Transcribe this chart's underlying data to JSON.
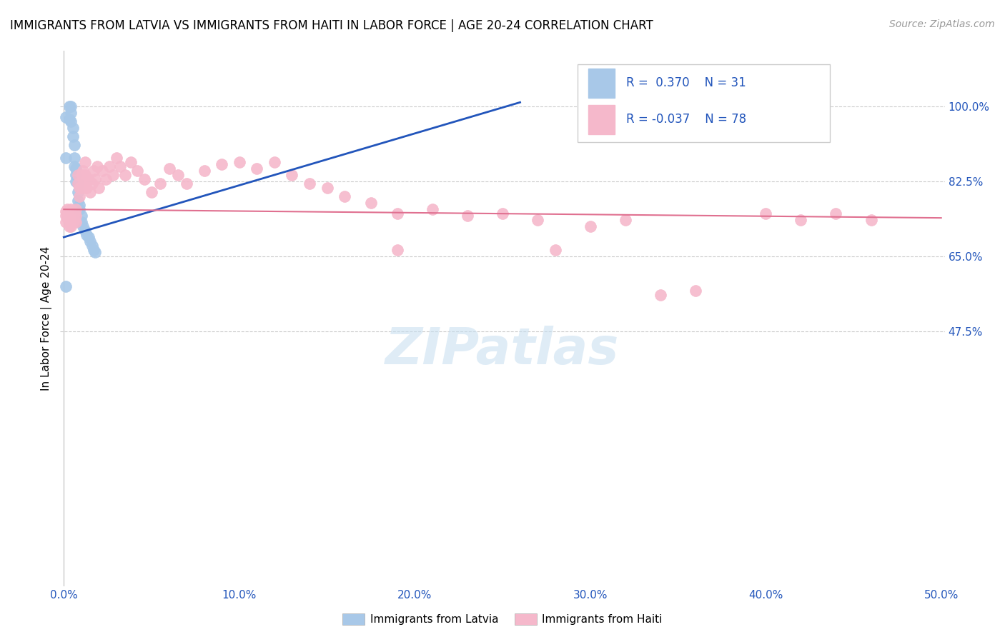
{
  "title": "IMMIGRANTS FROM LATVIA VS IMMIGRANTS FROM HAITI IN LABOR FORCE | AGE 20-24 CORRELATION CHART",
  "source": "Source: ZipAtlas.com",
  "ylabel": "In Labor Force | Age 20-24",
  "legend_r_latvia": "0.370",
  "legend_n_latvia": "31",
  "legend_r_haiti": "-0.037",
  "legend_n_haiti": "78",
  "latvia_color": "#a8c8e8",
  "haiti_color": "#f5b8cb",
  "latvia_line_color": "#2255bb",
  "haiti_line_color": "#e07090",
  "watermark": "ZIPatlas",
  "xlim": [
    -0.002,
    0.502
  ],
  "ylim": [
    -0.12,
    1.13
  ],
  "yticks": [
    0.475,
    0.65,
    0.825,
    1.0
  ],
  "ytick_labels": [
    "47.5%",
    "65.0%",
    "82.5%",
    "100.0%"
  ],
  "xticks": [
    0.0,
    0.1,
    0.2,
    0.3,
    0.4,
    0.5
  ],
  "xtick_labels": [
    "0.0%",
    "10.0%",
    "20.0%",
    "30.0%",
    "40.0%",
    "50.0%"
  ],
  "latvia_x": [
    0.001,
    0.001,
    0.003,
    0.003,
    0.004,
    0.004,
    0.004,
    0.005,
    0.005,
    0.006,
    0.006,
    0.006,
    0.007,
    0.007,
    0.007,
    0.008,
    0.008,
    0.008,
    0.009,
    0.009,
    0.01,
    0.01,
    0.011,
    0.012,
    0.013,
    0.014,
    0.015,
    0.016,
    0.017,
    0.018,
    0.001
  ],
  "latvia_y": [
    0.975,
    0.88,
    1.0,
    0.97,
    1.0,
    0.985,
    0.965,
    0.95,
    0.93,
    0.91,
    0.88,
    0.86,
    0.855,
    0.84,
    0.825,
    0.82,
    0.8,
    0.78,
    0.77,
    0.76,
    0.745,
    0.73,
    0.72,
    0.71,
    0.7,
    0.695,
    0.685,
    0.675,
    0.665,
    0.66,
    0.58
  ],
  "haiti_x": [
    0.001,
    0.001,
    0.001,
    0.002,
    0.002,
    0.003,
    0.003,
    0.003,
    0.004,
    0.004,
    0.004,
    0.004,
    0.005,
    0.005,
    0.005,
    0.006,
    0.006,
    0.007,
    0.007,
    0.007,
    0.008,
    0.008,
    0.009,
    0.009,
    0.01,
    0.01,
    0.011,
    0.011,
    0.012,
    0.012,
    0.013,
    0.014,
    0.015,
    0.016,
    0.017,
    0.018,
    0.019,
    0.02,
    0.022,
    0.024,
    0.026,
    0.028,
    0.03,
    0.032,
    0.035,
    0.038,
    0.042,
    0.046,
    0.05,
    0.055,
    0.06,
    0.065,
    0.07,
    0.08,
    0.09,
    0.1,
    0.11,
    0.12,
    0.13,
    0.14,
    0.15,
    0.16,
    0.175,
    0.19,
    0.21,
    0.23,
    0.25,
    0.27,
    0.3,
    0.32,
    0.36,
    0.4,
    0.42,
    0.44,
    0.46,
    0.28,
    0.19,
    0.34
  ],
  "haiti_y": [
    0.755,
    0.745,
    0.73,
    0.76,
    0.74,
    0.75,
    0.735,
    0.72,
    0.76,
    0.745,
    0.735,
    0.72,
    0.755,
    0.745,
    0.73,
    0.75,
    0.735,
    0.76,
    0.745,
    0.73,
    0.84,
    0.82,
    0.81,
    0.79,
    0.84,
    0.81,
    0.85,
    0.82,
    0.87,
    0.84,
    0.81,
    0.83,
    0.8,
    0.82,
    0.85,
    0.83,
    0.86,
    0.81,
    0.85,
    0.83,
    0.86,
    0.84,
    0.88,
    0.86,
    0.84,
    0.87,
    0.85,
    0.83,
    0.8,
    0.82,
    0.855,
    0.84,
    0.82,
    0.85,
    0.865,
    0.87,
    0.855,
    0.87,
    0.84,
    0.82,
    0.81,
    0.79,
    0.775,
    0.75,
    0.76,
    0.745,
    0.75,
    0.735,
    0.72,
    0.735,
    0.57,
    0.75,
    0.735,
    0.75,
    0.735,
    0.665,
    0.665,
    0.56
  ],
  "latvia_line_x": [
    0.0,
    0.26
  ],
  "latvia_line_y": [
    0.695,
    1.01
  ],
  "haiti_line_x": [
    0.0,
    0.5
  ],
  "haiti_line_y": [
    0.76,
    0.74
  ]
}
